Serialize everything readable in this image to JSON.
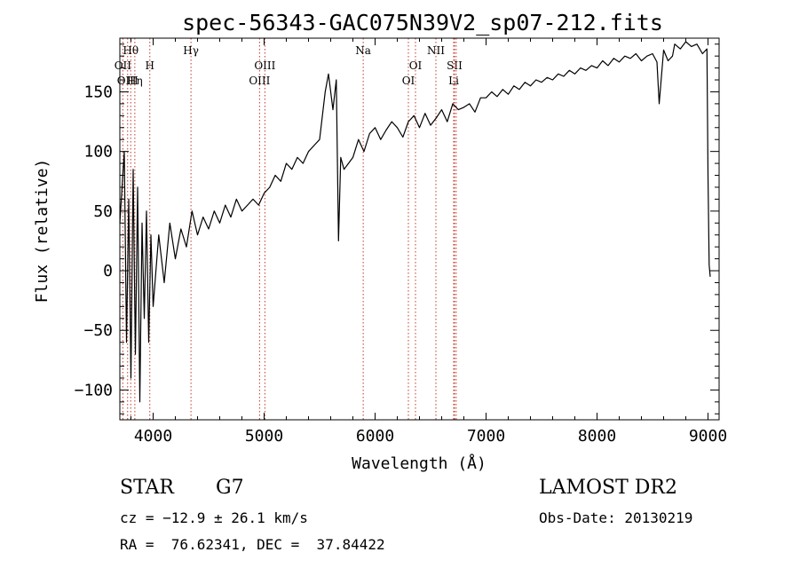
{
  "chart_data": {
    "type": "line",
    "title": "spec-56343-GAC075N39V2_sp07-212.fits",
    "xlabel": "Wavelength (Å)",
    "ylabel": "Flux (relative)",
    "xlim": [
      3700,
      9100
    ],
    "ylim": [
      -125,
      195
    ],
    "xticks": [
      4000,
      5000,
      6000,
      7000,
      8000,
      9000
    ],
    "yticks": [
      -100,
      -50,
      0,
      50,
      100,
      150
    ],
    "grid": false,
    "series": [
      {
        "color": "#000000",
        "x": [
          3700,
          3740,
          3760,
          3780,
          3800,
          3820,
          3840,
          3860,
          3880,
          3900,
          3920,
          3940,
          3960,
          3980,
          4000,
          4050,
          4100,
          4150,
          4200,
          4250,
          4300,
          4350,
          4400,
          4450,
          4500,
          4550,
          4600,
          4650,
          4700,
          4750,
          4800,
          4850,
          4900,
          4950,
          5000,
          5050,
          5100,
          5150,
          5200,
          5250,
          5300,
          5350,
          5400,
          5450,
          5500,
          5550,
          5580,
          5620,
          5650,
          5670,
          5690,
          5720,
          5760,
          5800,
          5850,
          5900,
          5950,
          6000,
          6050,
          6100,
          6150,
          6200,
          6250,
          6300,
          6350,
          6400,
          6450,
          6500,
          6550,
          6600,
          6650,
          6700,
          6750,
          6800,
          6850,
          6900,
          6950,
          7000,
          7050,
          7100,
          7150,
          7200,
          7250,
          7300,
          7350,
          7400,
          7450,
          7500,
          7550,
          7600,
          7650,
          7700,
          7750,
          7800,
          7850,
          7900,
          7950,
          8000,
          8050,
          8100,
          8150,
          8200,
          8250,
          8300,
          8350,
          8400,
          8450,
          8500,
          8540,
          8560,
          8600,
          8640,
          8680,
          8700,
          8750,
          8800,
          8850,
          8900,
          8950,
          8990,
          9000,
          9010,
          9020
        ],
        "y": [
          40,
          100,
          -60,
          60,
          -90,
          85,
          -70,
          70,
          -110,
          40,
          -40,
          50,
          -60,
          30,
          -30,
          30,
          -10,
          40,
          10,
          35,
          20,
          50,
          30,
          45,
          35,
          50,
          40,
          55,
          45,
          60,
          50,
          55,
          60,
          55,
          65,
          70,
          80,
          75,
          90,
          85,
          95,
          90,
          100,
          105,
          110,
          150,
          165,
          135,
          160,
          25,
          95,
          85,
          90,
          95,
          110,
          100,
          115,
          120,
          110,
          118,
          125,
          120,
          112,
          125,
          130,
          120,
          132,
          122,
          128,
          135,
          125,
          140,
          135,
          137,
          140,
          133,
          145,
          145,
          150,
          146,
          152,
          148,
          155,
          152,
          158,
          155,
          160,
          158,
          162,
          160,
          165,
          163,
          168,
          165,
          170,
          168,
          172,
          170,
          176,
          172,
          178,
          175,
          180,
          178,
          182,
          176,
          180,
          182,
          175,
          140,
          185,
          176,
          180,
          190,
          186,
          192,
          188,
          190,
          182,
          186,
          80,
          5,
          -5
        ]
      }
    ],
    "emission_lines": [
      {
        "wavelength": 3727,
        "label": "OII",
        "row": 2
      },
      {
        "wavelength": 3770,
        "label": "OIII",
        "row": 3
      },
      {
        "wavelength": 3798,
        "label": "Hθ",
        "row": 1
      },
      {
        "wavelength": 3835,
        "label": "Hη",
        "row": 3
      },
      {
        "wavelength": 3970,
        "label": "H",
        "row": 2
      },
      {
        "wavelength": 4341,
        "label": "Hγ",
        "row": 1
      },
      {
        "wavelength": 4959,
        "label": "OIII",
        "row": 3
      },
      {
        "wavelength": 5007,
        "label": "OIII",
        "row": 2
      },
      {
        "wavelength": 5893,
        "label": "Na",
        "row": 1
      },
      {
        "wavelength": 6300,
        "label": "OI",
        "row": 3
      },
      {
        "wavelength": 6364,
        "label": "OI",
        "row": 2
      },
      {
        "wavelength": 6548,
        "label": "NII",
        "row": 1
      },
      {
        "wavelength": 6708,
        "label": "Li",
        "row": 3
      },
      {
        "wavelength": 6716,
        "label": "SII",
        "row": 2
      },
      {
        "wavelength": 6731,
        "label": "",
        "row": 2
      }
    ],
    "line_marker_color": "#c0392b"
  },
  "info": {
    "object_class": "STAR",
    "subclass": "G7",
    "survey": "LAMOST DR2",
    "redshift_line": "cz = −12.9 ± 26.1 km/s",
    "obs_date_line": "Obs-Date: 20130219",
    "coords_line": "RA =  76.62341, DEC =  37.84422"
  }
}
